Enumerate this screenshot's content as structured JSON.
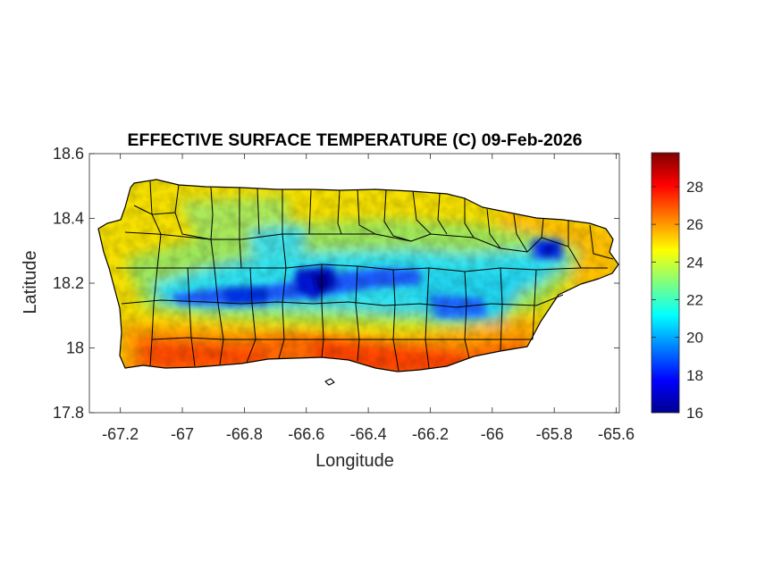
{
  "chart_data": {
    "type": "heatmap",
    "title": "EFFECTIVE SURFACE TEMPERATURE (C) 09-Feb-2026",
    "xlabel": "Longitude",
    "ylabel": "Latitude",
    "xlim": [
      -67.3,
      -65.59
    ],
    "ylim": [
      17.8,
      18.6
    ],
    "xticks": [
      -67.2,
      -67,
      -66.8,
      -66.6,
      -66.4,
      -66.2,
      -66,
      -65.8,
      -65.6
    ],
    "yticks": [
      17.8,
      18,
      18.2,
      18.4,
      18.6
    ],
    "colorbar": {
      "label": "",
      "range": [
        16,
        29.8
      ],
      "ticks": [
        16,
        18,
        20,
        22,
        24,
        26,
        28
      ],
      "colormap": "jet"
    },
    "region": "Puerto Rico (municipality boundaries)",
    "pattern": {
      "coolest_c": 16,
      "coolest_area": "central mountain ridge near -66.6 lon, 18.17 lat and east near -65.8 lon, 18.3 lat",
      "warmest_c": 27.5,
      "warmest_area": "southern coast between -66.9 and -66.2 lon",
      "north_coast_c": 24.5
    }
  },
  "colors": {
    "outline": "#000000",
    "axis": "#262626",
    "background": "#ffffff"
  }
}
